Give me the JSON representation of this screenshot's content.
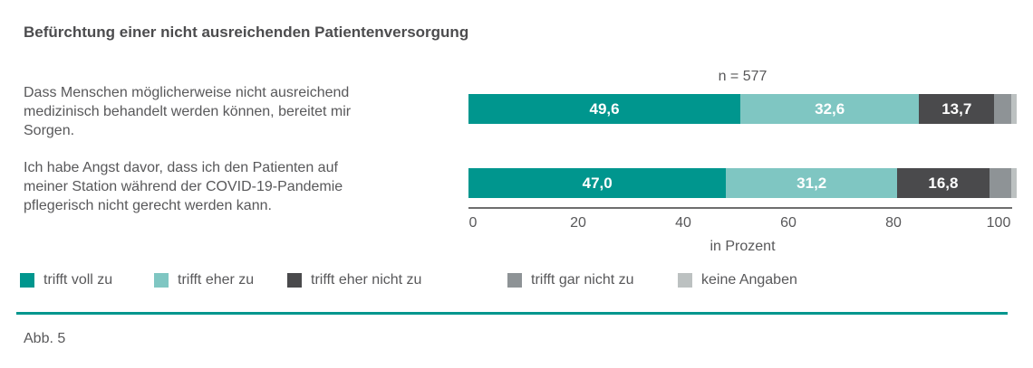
{
  "header": {
    "title": "Befürchtung einer nicht ausreichenden Patientenversorgung"
  },
  "statements": [
    {
      "text": "Dass Menschen möglicherweise nicht ausreichend\nmedizinisch behandelt werden können, bereitet mir\nSorgen."
    },
    {
      "text": "Ich habe Angst davor, dass ich den Patienten auf\nmeiner Station während der COVID-19-Pandemie\npflegerisch nicht gerecht werden kann."
    }
  ],
  "chart_data": {
    "type": "bar",
    "orientation": "horizontal-stacked",
    "sample_label": "n = 577",
    "categories": [
      "Dass Menschen möglicherweise nicht ausreichend medizinisch behandelt werden können, bereitet mir Sorgen.",
      "Ich habe Angst davor, dass ich den Patienten auf meiner Station während der COVID-19-Pandemie pflegerisch nicht gerecht werden kann."
    ],
    "series": [
      {
        "name": "trifft voll zu",
        "color": "#00968e",
        "values": [
          49.6,
          47.0
        ],
        "labels": [
          "49,6",
          "47,0"
        ]
      },
      {
        "name": "trifft eher zu",
        "color": "#7fc6c2",
        "values": [
          32.6,
          31.2
        ],
        "labels": [
          "32,6",
          "31,2"
        ]
      },
      {
        "name": "trifft eher nicht zu",
        "color": "#4a4a4c",
        "values": [
          13.7,
          16.8
        ],
        "labels": [
          "13,7",
          "16,8"
        ]
      },
      {
        "name": "trifft gar nicht zu",
        "color": "#8e9396",
        "values": [
          3.1,
          4.0
        ],
        "labels": [
          "",
          ""
        ]
      },
      {
        "name": "keine Angaben",
        "color": "#bcc1c1",
        "values": [
          1.0,
          1.0
        ],
        "labels": [
          "",
          ""
        ]
      }
    ],
    "legend": [
      "trifft voll zu",
      "trifft eher zu",
      "trifft eher nicht zu",
      "trifft gar nicht zu",
      "keine Angaben"
    ],
    "legend_position": "bottom",
    "xlabel": "in Prozent",
    "x_ticks": [
      "0",
      "20",
      "40",
      "60",
      "80",
      "100"
    ],
    "xlim": [
      0,
      100
    ],
    "grid": false
  },
  "footer": {
    "figure_label": "Abb. 5",
    "accent_color": "#00968e"
  }
}
